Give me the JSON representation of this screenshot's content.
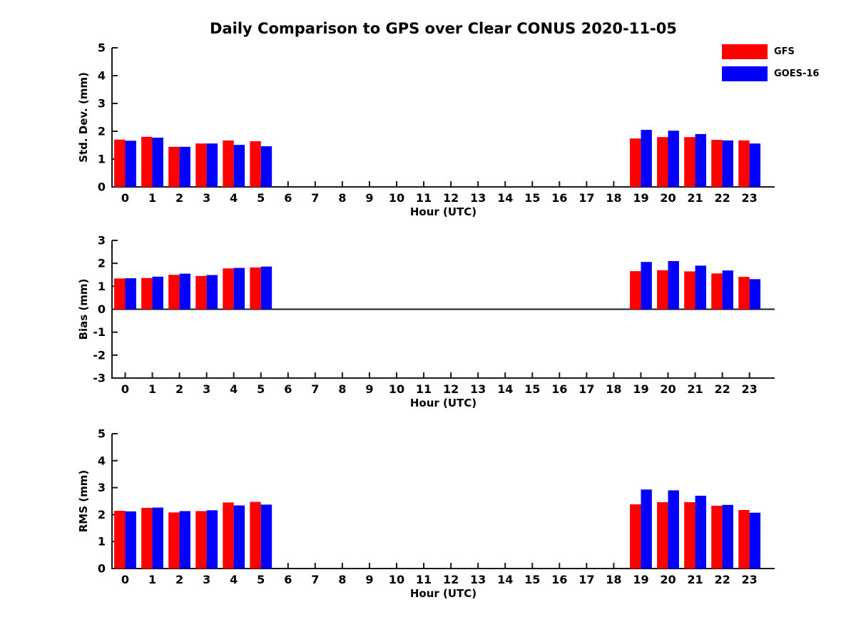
{
  "title": "Daily Comparison to GPS over Clear CONUS 2020-11-05",
  "legend": {
    "position": "top-right",
    "items": [
      {
        "label": "GFS",
        "color": "#ff0000"
      },
      {
        "label": "GOES-16",
        "color": "#0000ff"
      }
    ]
  },
  "colors": {
    "gfs": "#ff0000",
    "goes16": "#0000ff",
    "axis": "#1a1a1a",
    "background": "#ffffff"
  },
  "chart_data": [
    {
      "type": "bar",
      "panel": "std-dev",
      "ylabel": "Std. Dev. (mm)",
      "xlabel": "Hour (UTC)",
      "ylim": [
        0,
        5
      ],
      "yticks": [
        0,
        1,
        2,
        3,
        4,
        5
      ],
      "grid": false,
      "categories": [
        "0",
        "1",
        "2",
        "3",
        "4",
        "5",
        "6",
        "7",
        "8",
        "9",
        "10",
        "11",
        "12",
        "13",
        "14",
        "15",
        "16",
        "17",
        "18",
        "19",
        "20",
        "21",
        "22",
        "23"
      ],
      "series": [
        {
          "name": "GFS",
          "color": "#ff0000",
          "values": [
            1.7,
            1.8,
            1.44,
            1.56,
            1.67,
            1.64,
            null,
            null,
            null,
            null,
            null,
            null,
            null,
            null,
            null,
            null,
            null,
            null,
            null,
            1.74,
            1.79,
            1.79,
            1.69,
            1.67
          ]
        },
        {
          "name": "GOES-16",
          "color": "#0000ff",
          "values": [
            1.66,
            1.77,
            1.44,
            1.56,
            1.51,
            1.46,
            null,
            null,
            null,
            null,
            null,
            null,
            null,
            null,
            null,
            null,
            null,
            null,
            null,
            2.05,
            2.02,
            1.9,
            1.67,
            1.56
          ]
        }
      ]
    },
    {
      "type": "bar",
      "panel": "bias",
      "ylabel": "Bias (mm)",
      "xlabel": "Hour (UTC)",
      "ylim": [
        -3,
        3
      ],
      "yticks": [
        -3,
        -2,
        -1,
        0,
        1,
        2,
        3
      ],
      "grid": false,
      "categories": [
        "0",
        "1",
        "2",
        "3",
        "4",
        "5",
        "6",
        "7",
        "8",
        "9",
        "10",
        "11",
        "12",
        "13",
        "14",
        "15",
        "16",
        "17",
        "18",
        "19",
        "20",
        "21",
        "22",
        "23"
      ],
      "series": [
        {
          "name": "GFS",
          "color": "#ff0000",
          "values": [
            1.34,
            1.36,
            1.5,
            1.45,
            1.78,
            1.82,
            null,
            null,
            null,
            null,
            null,
            null,
            null,
            null,
            null,
            null,
            null,
            null,
            null,
            1.66,
            1.7,
            1.65,
            1.56,
            1.41
          ]
        },
        {
          "name": "GOES-16",
          "color": "#0000ff",
          "values": [
            1.35,
            1.42,
            1.55,
            1.49,
            1.8,
            1.86,
            null,
            null,
            null,
            null,
            null,
            null,
            null,
            null,
            null,
            null,
            null,
            null,
            null,
            2.06,
            2.1,
            1.9,
            1.69,
            1.31
          ]
        }
      ]
    },
    {
      "type": "bar",
      "panel": "rms",
      "ylabel": "RMS (mm)",
      "xlabel": "Hour (UTC)",
      "ylim": [
        0,
        5
      ],
      "yticks": [
        0,
        1,
        2,
        3,
        4,
        5
      ],
      "grid": false,
      "categories": [
        "0",
        "1",
        "2",
        "3",
        "4",
        "5",
        "6",
        "7",
        "8",
        "9",
        "10",
        "11",
        "12",
        "13",
        "14",
        "15",
        "16",
        "17",
        "18",
        "19",
        "20",
        "21",
        "22",
        "23"
      ],
      "series": [
        {
          "name": "GFS",
          "color": "#ff0000",
          "values": [
            2.14,
            2.25,
            2.08,
            2.13,
            2.45,
            2.47,
            null,
            null,
            null,
            null,
            null,
            null,
            null,
            null,
            null,
            null,
            null,
            null,
            null,
            2.38,
            2.46,
            2.46,
            2.33,
            2.17
          ]
        },
        {
          "name": "GOES-16",
          "color": "#0000ff",
          "values": [
            2.12,
            2.26,
            2.13,
            2.16,
            2.34,
            2.37,
            null,
            null,
            null,
            null,
            null,
            null,
            null,
            null,
            null,
            null,
            null,
            null,
            null,
            2.93,
            2.9,
            2.7,
            2.36,
            2.07
          ]
        }
      ]
    }
  ]
}
